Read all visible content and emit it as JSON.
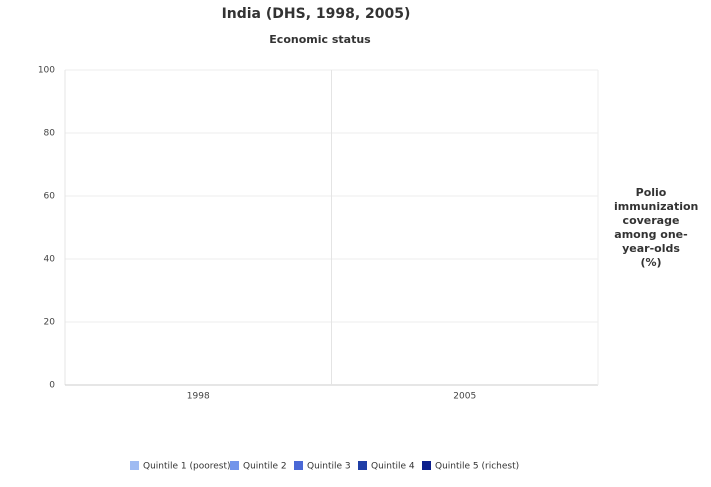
{
  "chart_data": {
    "type": "bar",
    "title": "India (DHS, 1998, 2005)",
    "subtitle": "Economic status",
    "y_label": "Polio immunization coverage among one-year-olds (%)",
    "categories": [
      "1998",
      "2005"
    ],
    "series": [
      {
        "name": "Quintile 1 (poorest)",
        "color": "#9fbbf2",
        "values": [
          0,
          0
        ]
      },
      {
        "name": "Quintile 2",
        "color": "#7395ea",
        "values": [
          0,
          0
        ]
      },
      {
        "name": "Quintile 3",
        "color": "#4a68d6",
        "values": [
          0,
          0
        ]
      },
      {
        "name": "Quintile 4",
        "color": "#1f3ea6",
        "values": [
          0,
          0
        ]
      },
      {
        "name": "Quintile 5 (richest)",
        "color": "#0b1e8c",
        "values": [
          0,
          0
        ]
      }
    ],
    "ylim": [
      0,
      100
    ],
    "yticks": [
      0,
      20,
      40,
      60,
      80,
      100
    ],
    "grid": true
  }
}
